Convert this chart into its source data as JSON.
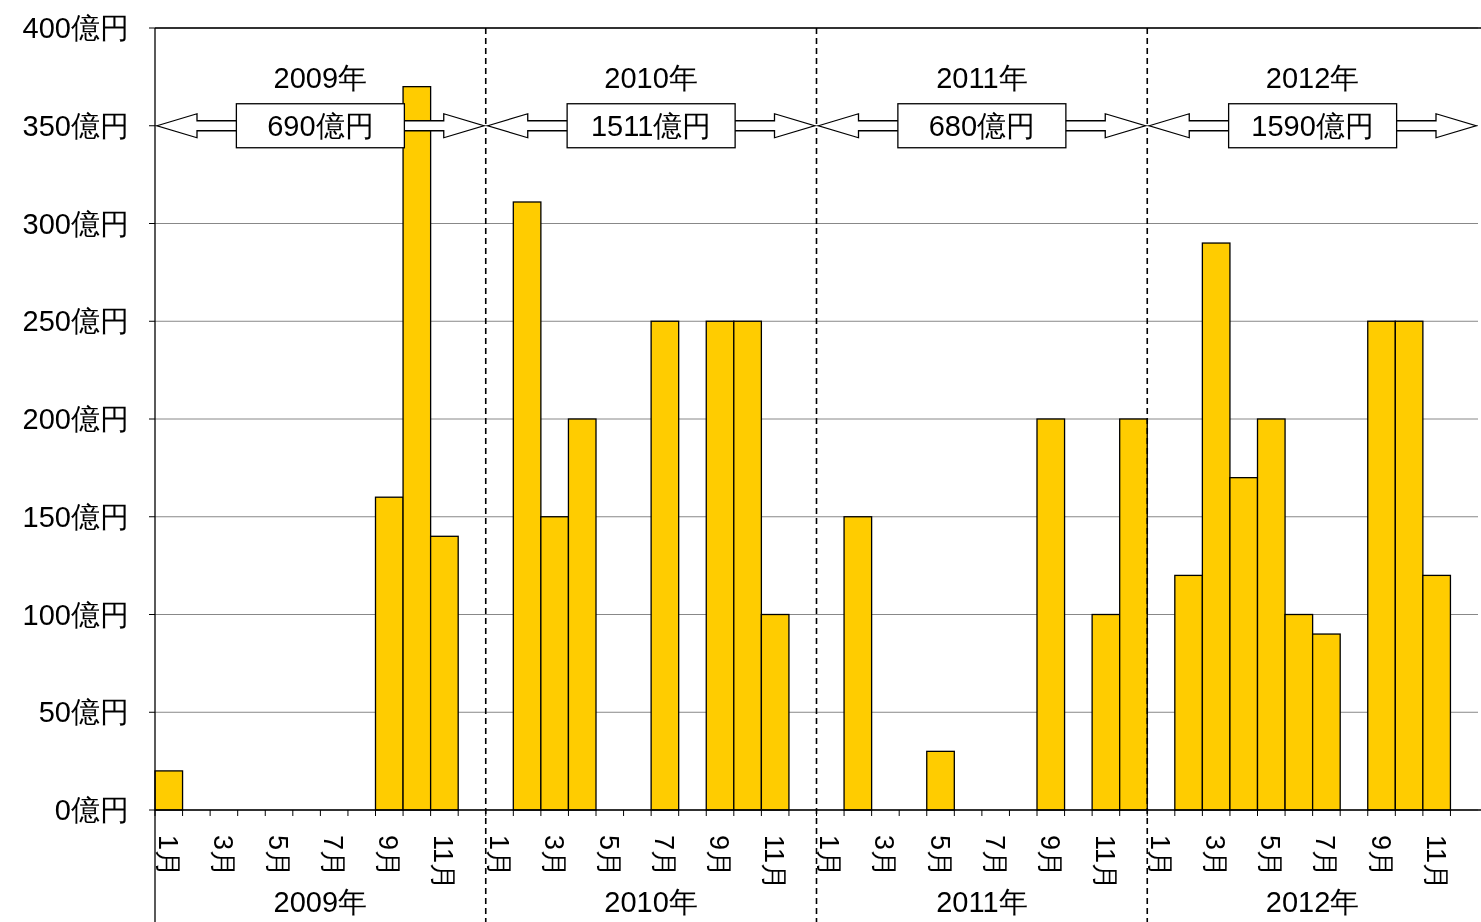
{
  "chart_data": {
    "type": "bar",
    "categories": [
      "1月",
      null,
      "3月",
      null,
      "5月",
      null,
      "7月",
      null,
      "9月",
      null,
      "11月",
      null,
      "1月",
      null,
      "3月",
      null,
      "5月",
      null,
      "7月",
      null,
      "9月",
      null,
      "11月",
      null,
      "1月",
      null,
      "3月",
      null,
      "5月",
      null,
      "7月",
      null,
      "9月",
      null,
      "11月",
      null,
      "1月",
      null,
      "3月",
      null,
      "5月",
      null,
      "7月",
      null,
      "9月",
      null,
      "11月",
      null
    ],
    "values": [
      20,
      0,
      0,
      0,
      0,
      0,
      0,
      0,
      160,
      370,
      140,
      0,
      0,
      311,
      150,
      200,
      0,
      0,
      250,
      0,
      250,
      250,
      100,
      0,
      0,
      150,
      0,
      0,
      30,
      0,
      0,
      0,
      200,
      0,
      100,
      200,
      0,
      120,
      290,
      170,
      200,
      100,
      90,
      0,
      250,
      250,
      120,
      0
    ],
    "color": "#ffcc00",
    "ylim": [
      0,
      400
    ],
    "yticks": [
      {
        "value": 0,
        "label": "0億円"
      },
      {
        "value": 50,
        "label": "50億円"
      },
      {
        "value": 100,
        "label": "100億円"
      },
      {
        "value": 150,
        "label": "150億円"
      },
      {
        "value": 200,
        "label": "200億円"
      },
      {
        "value": 250,
        "label": "250億円"
      },
      {
        "value": 300,
        "label": "300億円"
      },
      {
        "value": 350,
        "label": "350億円"
      },
      {
        "value": 400,
        "label": "400億円"
      }
    ],
    "grid": "y",
    "annotations": [
      "2009年",
      "690億円",
      "2009年",
      "2010年",
      "1511億円",
      "2010年",
      "2011年",
      "680億円",
      "2011年",
      "2012年",
      "1590億円",
      "2012年"
    ]
  }
}
